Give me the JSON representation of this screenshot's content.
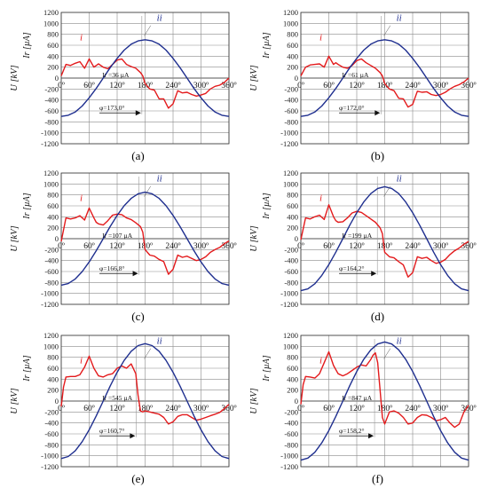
{
  "chart_data": [
    {
      "panel_label": "(a)",
      "type": "line",
      "x_ticks": [
        "0º",
        "60º",
        "120º",
        "180º",
        "240º",
        "300º",
        "360º"
      ],
      "y_ticks": [
        "-1200",
        "-1000",
        "-800",
        "-600",
        "-400",
        "-200",
        "0",
        "200",
        "400",
        "600",
        "800",
        "1000",
        "1200"
      ],
      "ylabel_u": "U [kV]",
      "ylabel_i": "Ir [µA]",
      "xlim": [
        0,
        360
      ],
      "ylim": [
        -1200,
        1200
      ],
      "grid": true,
      "series": [
        {
          "name": "i",
          "color": "#e31a1c",
          "x": [
            0,
            10,
            20,
            30,
            40,
            50,
            60,
            70,
            75,
            80,
            90,
            100,
            110,
            120,
            130,
            140,
            150,
            160,
            170,
            175,
            180,
            190,
            200,
            210,
            220,
            230,
            240,
            250,
            260,
            270,
            280,
            290,
            300,
            310,
            320,
            330,
            340,
            350,
            360
          ],
          "y": [
            40,
            250,
            230,
            270,
            300,
            180,
            350,
            200,
            230,
            260,
            200,
            170,
            250,
            330,
            350,
            250,
            210,
            180,
            100,
            40,
            -100,
            -200,
            -220,
            -380,
            -380,
            -550,
            -470,
            -230,
            -270,
            -260,
            -300,
            -330,
            -310,
            -280,
            -200,
            -150,
            -130,
            -80,
            0
          ]
        },
        {
          "name": "ii",
          "color": "#1f2f8f",
          "x": [
            0,
            15,
            30,
            45,
            60,
            75,
            90,
            105,
            120,
            135,
            150,
            165,
            180,
            195,
            210,
            225,
            240,
            255,
            270,
            285,
            300,
            315,
            330,
            345,
            360
          ],
          "y": [
            -700,
            -680,
            -620,
            -510,
            -360,
            -190,
            0,
            190,
            360,
            510,
            620,
            680,
            700,
            680,
            620,
            510,
            360,
            190,
            0,
            -190,
            -360,
            -510,
            -620,
            -680,
            -700
          ]
        }
      ],
      "annotations": {
        "series_i": "i",
        "series_ii": "ii",
        "current_text": "Ir =36 µA",
        "phase_text": "φ=173,0°"
      },
      "phase_line_x": 173.0
    },
    {
      "panel_label": "(b)",
      "type": "line",
      "x_ticks": [
        "0º",
        "60º",
        "120º",
        "180º",
        "240º",
        "300º",
        "360º"
      ],
      "y_ticks": [
        "-1200",
        "-1000",
        "-800",
        "-600",
        "-400",
        "-200",
        "0",
        "200",
        "400",
        "600",
        "800",
        "1000",
        "1200"
      ],
      "ylabel_u": "U [kV]",
      "ylabel_i": "Ir [µA]",
      "xlim": [
        0,
        360
      ],
      "ylim": [
        -1200,
        1200
      ],
      "grid": true,
      "series": [
        {
          "name": "i",
          "color": "#e31a1c",
          "x": [
            0,
            10,
            20,
            30,
            40,
            50,
            60,
            70,
            75,
            80,
            90,
            100,
            110,
            120,
            130,
            140,
            150,
            160,
            170,
            175,
            180,
            190,
            200,
            210,
            220,
            230,
            240,
            250,
            260,
            270,
            280,
            290,
            300,
            310,
            320,
            330,
            340,
            350,
            360
          ],
          "y": [
            40,
            200,
            240,
            250,
            260,
            200,
            400,
            250,
            280,
            250,
            200,
            180,
            230,
            320,
            350,
            280,
            230,
            180,
            100,
            40,
            -100,
            -200,
            -230,
            -370,
            -380,
            -530,
            -480,
            -240,
            -260,
            -250,
            -300,
            -320,
            -300,
            -260,
            -200,
            -150,
            -120,
            -70,
            0
          ]
        },
        {
          "name": "ii",
          "color": "#1f2f8f",
          "x": [
            0,
            15,
            30,
            45,
            60,
            75,
            90,
            105,
            120,
            135,
            150,
            165,
            180,
            195,
            210,
            225,
            240,
            255,
            270,
            285,
            300,
            315,
            330,
            345,
            360
          ],
          "y": [
            -700,
            -680,
            -620,
            -510,
            -360,
            -190,
            0,
            190,
            360,
            510,
            620,
            680,
            700,
            680,
            620,
            510,
            360,
            190,
            0,
            -190,
            -360,
            -510,
            -620,
            -680,
            -700
          ]
        }
      ],
      "annotations": {
        "series_i": "i",
        "series_ii": "ii",
        "current_text": "Ir =61 µA",
        "phase_text": "φ=172,0°"
      },
      "phase_line_x": 172.0
    },
    {
      "panel_label": "(c)",
      "type": "line",
      "x_ticks": [
        "0º",
        "60º",
        "120º",
        "180º",
        "240º",
        "300º",
        "360º"
      ],
      "y_ticks": [
        "-1200",
        "-1000",
        "-800",
        "-600",
        "-400",
        "-200",
        "0",
        "200",
        "400",
        "600",
        "800",
        "1000",
        "1200"
      ],
      "ylabel_u": "U [kV]",
      "ylabel_i": "Ir [µA]",
      "xlim": [
        0,
        360
      ],
      "ylim": [
        -1200,
        1200
      ],
      "grid": true,
      "series": [
        {
          "name": "i",
          "color": "#e31a1c",
          "x": [
            0,
            10,
            20,
            30,
            40,
            50,
            60,
            70,
            75,
            80,
            90,
            100,
            110,
            120,
            130,
            140,
            150,
            160,
            170,
            175,
            180,
            190,
            200,
            210,
            220,
            230,
            240,
            250,
            260,
            270,
            280,
            290,
            300,
            310,
            320,
            330,
            340,
            350,
            360
          ],
          "y": [
            -50,
            380,
            360,
            380,
            420,
            340,
            560,
            380,
            300,
            270,
            250,
            330,
            430,
            450,
            440,
            380,
            350,
            290,
            220,
            120,
            -200,
            -300,
            -320,
            -380,
            -420,
            -650,
            -560,
            -300,
            -340,
            -320,
            -360,
            -400,
            -380,
            -330,
            -250,
            -200,
            -160,
            -90,
            -40
          ]
        },
        {
          "name": "ii",
          "color": "#1f2f8f",
          "x": [
            0,
            15,
            30,
            45,
            60,
            75,
            90,
            105,
            120,
            135,
            150,
            165,
            180,
            195,
            210,
            225,
            240,
            255,
            270,
            285,
            300,
            315,
            330,
            345,
            360
          ],
          "y": [
            -850,
            -821,
            -736,
            -601,
            -425,
            -220,
            0,
            220,
            425,
            601,
            736,
            821,
            850,
            821,
            736,
            601,
            425,
            220,
            0,
            -220,
            -425,
            -601,
            -736,
            -821,
            -850
          ]
        }
      ],
      "annotations": {
        "series_i": "i",
        "series_ii": "ii",
        "current_text": "Ir =107 µA",
        "phase_text": "φ=166,8°"
      },
      "phase_line_x": 166.8
    },
    {
      "panel_label": "(d)",
      "type": "line",
      "x_ticks": [
        "0º",
        "60º",
        "120º",
        "180º",
        "240º",
        "300º",
        "360º"
      ],
      "y_ticks": [
        "-1200",
        "-1000",
        "-800",
        "-600",
        "-400",
        "-200",
        "0",
        "200",
        "400",
        "600",
        "800",
        "1000",
        "1200"
      ],
      "ylabel_u": "U [kV]",
      "ylabel_i": "Ir [µA]",
      "xlim": [
        0,
        360
      ],
      "ylim": [
        -1200,
        1200
      ],
      "grid": true,
      "series": [
        {
          "name": "i",
          "color": "#e31a1c",
          "x": [
            0,
            10,
            20,
            30,
            40,
            50,
            60,
            70,
            75,
            80,
            90,
            100,
            110,
            120,
            130,
            140,
            150,
            160,
            170,
            175,
            180,
            190,
            200,
            210,
            220,
            230,
            240,
            250,
            260,
            270,
            280,
            290,
            300,
            310,
            320,
            330,
            340,
            350,
            360
          ],
          "y": [
            -20,
            380,
            360,
            400,
            430,
            350,
            620,
            400,
            330,
            300,
            310,
            380,
            470,
            500,
            480,
            420,
            360,
            300,
            200,
            90,
            -250,
            -330,
            -350,
            -420,
            -480,
            -700,
            -620,
            -330,
            -360,
            -340,
            -400,
            -450,
            -430,
            -380,
            -290,
            -220,
            -170,
            -100,
            -50
          ]
        },
        {
          "name": "ii",
          "color": "#1f2f8f",
          "x": [
            0,
            15,
            30,
            45,
            60,
            75,
            90,
            105,
            120,
            135,
            150,
            165,
            180,
            195,
            210,
            225,
            240,
            255,
            270,
            285,
            300,
            315,
            330,
            345,
            360
          ],
          "y": [
            -950,
            -918,
            -823,
            -672,
            -475,
            -246,
            0,
            246,
            475,
            672,
            823,
            918,
            950,
            918,
            823,
            672,
            475,
            246,
            0,
            -246,
            -475,
            -672,
            -823,
            -918,
            -950
          ]
        }
      ],
      "annotations": {
        "series_i": "i",
        "series_ii": "ii",
        "current_text": "Ir =199 µA",
        "phase_text": "φ=164,2°"
      },
      "phase_line_x": 164.2
    },
    {
      "panel_label": "(e)",
      "type": "line",
      "x_ticks": [
        "0º",
        "60º",
        "120º",
        "180º",
        "240º",
        "300º",
        "360º"
      ],
      "y_ticks": [
        "-1200",
        "-1000",
        "-800",
        "-600",
        "-400",
        "-200",
        "0",
        "200",
        "400",
        "600",
        "800",
        "1000",
        "1200"
      ],
      "ylabel_u": "U [kV]",
      "ylabel_i": "Ir [µA]",
      "xlim": [
        0,
        360
      ],
      "ylim": [
        -1200,
        1200
      ],
      "grid": true,
      "series": [
        {
          "name": "i",
          "color": "#e31a1c",
          "x": [
            0,
            5,
            10,
            20,
            30,
            40,
            50,
            60,
            70,
            80,
            90,
            100,
            110,
            120,
            130,
            140,
            150,
            160,
            165,
            170,
            175,
            180,
            190,
            200,
            210,
            220,
            230,
            240,
            250,
            260,
            270,
            280,
            290,
            300,
            310,
            320,
            330,
            340,
            350,
            360
          ],
          "y": [
            -100,
            260,
            440,
            450,
            450,
            480,
            620,
            820,
            600,
            460,
            440,
            480,
            500,
            600,
            640,
            600,
            680,
            500,
            100,
            -180,
            -200,
            -180,
            -200,
            -220,
            -240,
            -300,
            -420,
            -380,
            -280,
            -250,
            -250,
            -300,
            -350,
            -330,
            -300,
            -270,
            -240,
            -210,
            -140,
            -60
          ]
        },
        {
          "name": "ii",
          "color": "#1f2f8f",
          "x": [
            0,
            15,
            30,
            45,
            60,
            75,
            90,
            105,
            120,
            135,
            150,
            165,
            180,
            195,
            210,
            225,
            240,
            255,
            270,
            285,
            300,
            315,
            330,
            345,
            360
          ],
          "y": [
            -1050,
            -1014,
            -909,
            -742,
            -525,
            -272,
            0,
            272,
            525,
            742,
            909,
            1014,
            1050,
            1014,
            909,
            742,
            525,
            272,
            0,
            -272,
            -525,
            -742,
            -909,
            -1014,
            -1050
          ]
        }
      ],
      "annotations": {
        "series_i": "i",
        "series_ii": "ii",
        "current_text": "Ir =545 µA",
        "phase_text": "φ=160,7°"
      },
      "phase_line_x": 160.7
    },
    {
      "panel_label": "(f)",
      "type": "line",
      "x_ticks": [
        "0º",
        "60º",
        "120º",
        "180º",
        "240º",
        "300º",
        "360º"
      ],
      "y_ticks": [
        "-1200",
        "-1000",
        "-800",
        "-600",
        "-400",
        "-200",
        "0",
        "200",
        "400",
        "600",
        "800",
        "1000",
        "1200"
      ],
      "ylabel_u": "U [kV]",
      "ylabel_i": "Ir [µA]",
      "xlim": [
        0,
        360
      ],
      "ylim": [
        -1200,
        1200
      ],
      "grid": true,
      "series": [
        {
          "name": "i",
          "color": "#e31a1c",
          "x": [
            0,
            5,
            10,
            20,
            30,
            40,
            50,
            60,
            70,
            80,
            90,
            100,
            110,
            120,
            130,
            140,
            150,
            155,
            160,
            165,
            170,
            175,
            180,
            190,
            200,
            210,
            220,
            230,
            240,
            250,
            260,
            270,
            280,
            290,
            300,
            310,
            320,
            330,
            340,
            350,
            360
          ],
          "y": [
            -60,
            300,
            450,
            440,
            420,
            500,
            700,
            900,
            650,
            500,
            460,
            500,
            560,
            620,
            660,
            640,
            760,
            840,
            880,
            700,
            200,
            -300,
            -420,
            -200,
            -180,
            -220,
            -300,
            -420,
            -400,
            -300,
            -250,
            -260,
            -300,
            -360,
            -340,
            -300,
            -400,
            -480,
            -420,
            -200,
            -80
          ]
        },
        {
          "name": "ii",
          "color": "#1f2f8f",
          "x": [
            0,
            15,
            30,
            45,
            60,
            75,
            90,
            105,
            120,
            135,
            150,
            165,
            180,
            195,
            210,
            225,
            240,
            255,
            270,
            285,
            300,
            315,
            330,
            345,
            360
          ],
          "y": [
            -1080,
            -1043,
            -935,
            -764,
            -540,
            -280,
            0,
            280,
            540,
            764,
            935,
            1043,
            1080,
            1043,
            935,
            764,
            540,
            280,
            0,
            -280,
            -540,
            -764,
            -935,
            -1043,
            -1080
          ]
        }
      ],
      "annotations": {
        "series_i": "i",
        "series_ii": "ii",
        "current_text": "Ir =847 µA",
        "phase_text": "φ=158,2°"
      },
      "phase_line_x": 158.2
    }
  ]
}
